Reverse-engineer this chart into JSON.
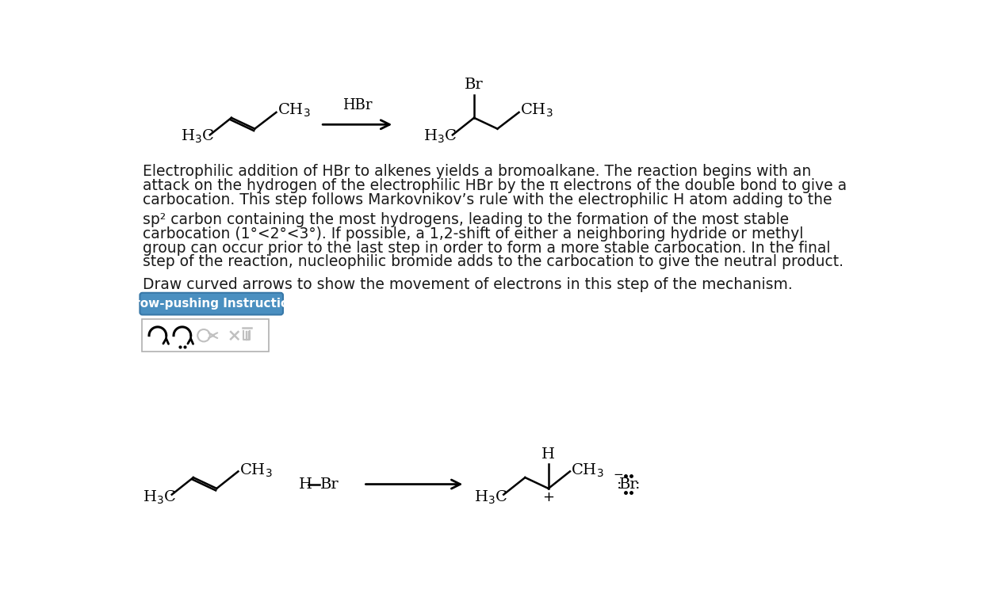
{
  "bg_color": "#ffffff",
  "paragraph1_lines": [
    "Electrophilic addition of HBr to alkenes yields a bromoalkane. The reaction begins with an",
    "attack on the hydrogen of the electrophilic HBr by the π electrons of the double bond to give a",
    "carbocation. This step follows Markovnikov’s rule with the electrophilic H atom adding to the"
  ],
  "paragraph2_lines": [
    "sp² carbon containing the most hydrogens, leading to the formation of the most stable",
    "carbocation (1°<2°<3°). If possible, a 1,2-shift of either a neighboring hydride or methyl",
    "group can occur prior to the last step in order to form a more stable carbocation. In the final",
    "step of the reaction, nucleophilic bromide adds to the carbocation to give the neutral product."
  ],
  "paragraph3": "Draw curved arrows to show the movement of electrons in this step of the mechanism.",
  "button_text": "Arrow-pushing Instructions",
  "button_bg": "#4a8fc0",
  "button_text_color": "#ffffff",
  "font_size_body": 13.5,
  "text_color": "#1a1a1a"
}
